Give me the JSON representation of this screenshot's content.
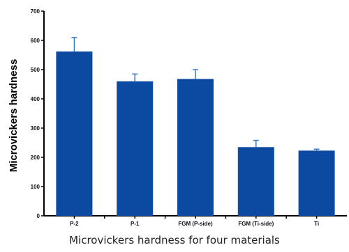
{
  "caption": "Microvickers hardness for four materials",
  "chart_data": {
    "type": "bar",
    "title": "",
    "xlabel": "",
    "ylabel": "Microvickers hardness",
    "categories": [
      "P-2",
      "P-1",
      "FGM (P-side)",
      "FGM (Ti-side)",
      "Ti"
    ],
    "values": [
      562,
      460,
      468,
      235,
      223
    ],
    "error": [
      48,
      25,
      32,
      23,
      5
    ],
    "ylim": [
      0,
      700
    ],
    "yticks": [
      0,
      100,
      200,
      300,
      400,
      500,
      600,
      700
    ],
    "grid": false,
    "legend": "none",
    "bar_color": "#0b4aa0",
    "error_color": "#3a78c8"
  }
}
